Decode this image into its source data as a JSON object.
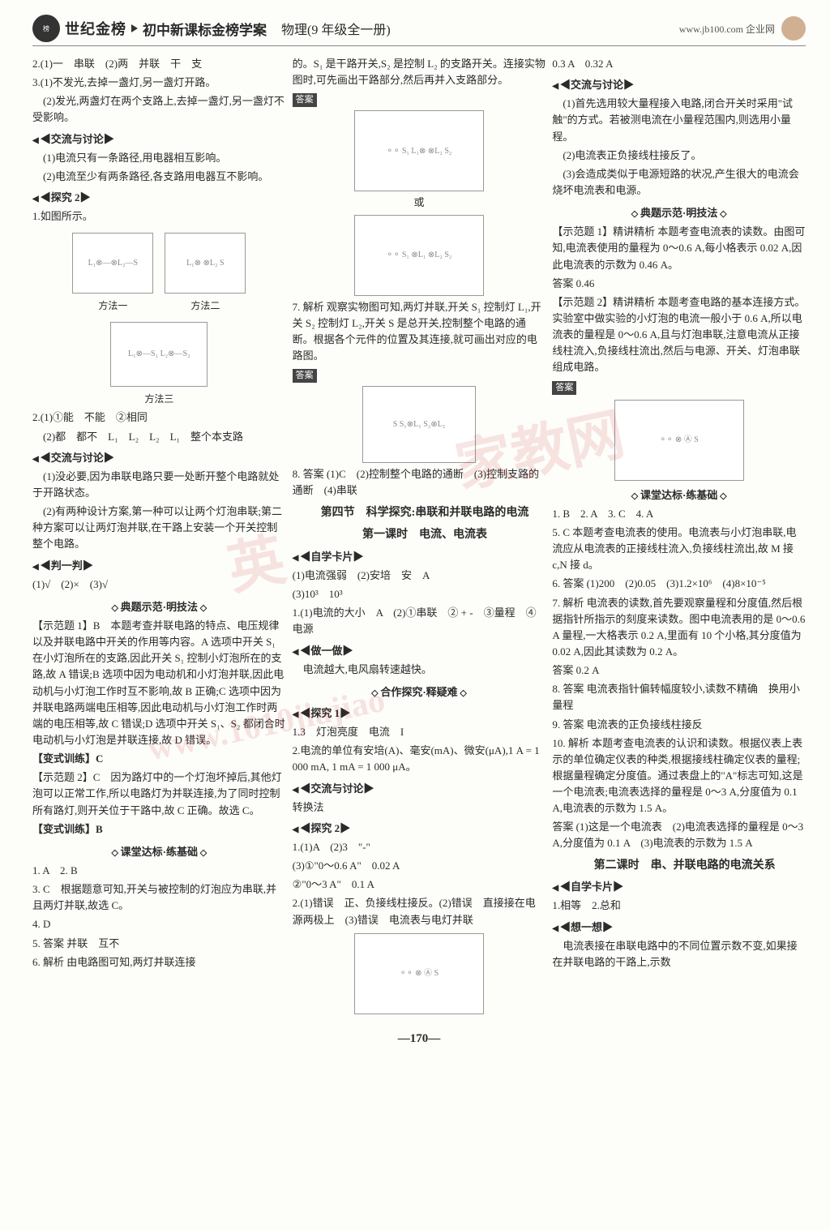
{
  "header": {
    "brand": "世纪金榜",
    "subtitle": "初中新课标金榜学案",
    "volume": "物理(9 年级全一册)",
    "url": "www.jb100.com 企业网"
  },
  "watermark": {
    "w1": "英",
    "w2": "家教网",
    "w3": "www.1010jiajiao"
  },
  "col1": {
    "l1": "2.(1)一　串联　(2)两　并联　干　支",
    "l2": "3.(1)不发光,去掉一盏灯,另一盏灯开路。",
    "l3": "(2)发光,两盏灯在两个支路上,去掉一盏灯,另一盏灯不受影响。",
    "sec1": "◀交流与讨论▶",
    "l4": "(1)电流只有一条路径,用电器相互影响。",
    "l5": "(2)电流至少有两条路径,各支路用电器互不影响。",
    "sec2": "◀探究 2▶",
    "l6": "1.如图所示。",
    "m1": "方法一",
    "m2": "方法二",
    "m3": "方法三",
    "l7": "2.(1)①能　不能　②相同",
    "l8": "(2)都　都不　L₁　L₂　L₂　L₁　整个本支路",
    "sec3": "◀交流与讨论▶",
    "l9": "(1)没必要,因为串联电路只要一处断开整个电路就处于开路状态。",
    "l10": "(2)有两种设计方案,第一种可以让两个灯泡串联;第二种方案可以让两灯泡并联,在干路上安装一个开关控制整个电路。",
    "sec4": "◀判一判▶",
    "l11": "(1)√　(2)×　(3)√",
    "bar1": "典题示范·明技法",
    "l12": "【示范题 1】B　本题考查并联电路的特点、电压规律以及并联电路中开关的作用等内容。A 选项中开关 S₁ 在小灯泡所在的支路,因此开关 S₁ 控制小灯泡所在的支路,故 A 错误;B 选项中因为电动机和小灯泡并联,因此电动机与小灯泡工作时互不影响,故 B 正确;C 选项中因为并联电路两端电压相等,因此电动机与小灯泡工作时两端的电压相等,故 C 错误;D 选项中开关 S₁、S₂ 都闭合时电动机与小灯泡是并联连接,故 D 错误。",
    "l13": "【变式训练】C",
    "l14": "【示范题 2】C　因为路灯中的一个灯泡坏掉后,其他灯泡可以正常工作,所以电路灯为并联连接,为了同时控制所有路灯,则开关位于干路中,故 C 正确。故选 C。",
    "l15": "【变式训练】B",
    "bar2": "课堂达标·练基础",
    "l16": "1. A　2. B",
    "l17": "3. C　根据题意可知,开关与被控制的灯泡应为串联,并且两灯并联,故选 C。",
    "l18": "4. D",
    "l19": "5. 答案 并联　互不",
    "l20": "6. 解析 由电路图可知,两灯并联连接"
  },
  "col2": {
    "l1": "的。S₁ 是干路开关,S₂ 是控制 L₂ 的支路开关。连接实物图时,可先画出干路部分,然后再并入支路部分。",
    "l2a": "答案",
    "huo": "或",
    "l3": "7. 解析 观察实物图可知,两灯并联,开关 S₁ 控制灯 L₁,开关 S₂ 控制灯 L₂,开关 S 是总开关,控制整个电路的通断。根据各个元件的位置及其连接,就可画出对应的电路图。",
    "l3a": "答案",
    "l4": "8. 答案 (1)C　(2)控制整个电路的通断　(3)控制支路的通断　(4)串联",
    "ttl1": "第四节　科学探究:串联和并联电路的电流",
    "ttl2": "第一课时　电流、电流表",
    "sec1": "◀自学卡片▶",
    "l5": "(1)电流强弱　(2)安培　安　A",
    "l6": "(3)10³　10³",
    "l7": "1.(1)电流的大小　A　(2)①串联　② + -　③量程　④电源",
    "sec2": "◀做一做▶",
    "l8": "电流越大,电风扇转速越快。",
    "bar1": "合作探究·释疑难",
    "sec3": "◀探究 1▶",
    "l9": "1.3　灯泡亮度　电流　I",
    "l10": "2.电流的单位有安培(A)、毫安(mA)、微安(μA),1 A = 1 000 mA, 1 mA = 1 000 μA。",
    "sec4": "◀交流与讨论▶",
    "l11": "转换法",
    "sec5": "◀探究 2▶",
    "l12": "1.(1)A　(2)3　\"-\"",
    "l13": "(3)①\"0～0.6 A\"　0.02 A",
    "l14": "②\"0～3 A\"　0.1 A",
    "l15": "2.(1)错误　正、负接线柱接反。(2)错误　直接接在电源两极上　(3)错误　电流表与电灯并联"
  },
  "col3": {
    "l1": "0.3 A　0.32 A",
    "sec1": "◀交流与讨论▶",
    "l2": "(1)首先选用较大量程接入电路,闭合开关时采用\"试触\"的方式。若被测电流在小量程范围内,则选用小量程。",
    "l3": "(2)电流表正负接线柱接反了。",
    "l4": "(3)会造成类似于电源短路的状况,产生很大的电流会烧坏电流表和电源。",
    "bar1": "典题示范·明技法",
    "l5": "【示范题 1】精讲精析 本题考查电流表的读数。由图可知,电流表使用的量程为 0～0.6 A,每小格表示 0.02 A,因此电流表的示数为 0.46 A。",
    "l6": "答案 0.46",
    "l7": "【示范题 2】精讲精析 本题考查电路的基本连接方式。实验室中做实验的小灯泡的电流一般小于 0.6 A,所以电流表的量程是 0～0.6 A,且与灯泡串联,注意电流从正接线柱流入,负接线柱流出,然后与电源、开关、灯泡串联组成电路。",
    "l7a": "答案",
    "bar2": "课堂达标·练基础",
    "l8": "1. B　2. A　3. C　4. A",
    "l9": "5. C 本题考查电流表的使用。电流表与小灯泡串联,电流应从电流表的正接线柱流入,负接线柱流出,故 M 接 c,N 接 d。",
    "l10": "6. 答案 (1)200　(2)0.05　(3)1.2×10⁶　(4)8×10⁻⁵",
    "l11": "7. 解析 电流表的读数,首先要观察量程和分度值,然后根据指针所指示的刻度来读数。图中电流表用的是 0～0.6 A 量程,一大格表示 0.2 A,里面有 10 个小格,其分度值为 0.02 A,因此其读数为 0.2 A。",
    "l12": "答案 0.2 A",
    "l13": "8. 答案 电流表指针偏转幅度较小,读数不精确　换用小量程",
    "l14": "9. 答案 电流表的正负接线柱接反",
    "l15": "10. 解析 本题考查电流表的认识和读数。根据仪表上表示的单位确定仪表的种类,根据接线柱确定仪表的量程;根据量程确定分度值。通过表盘上的\"A\"标志可知,这是一个电流表;电流表选择的量程是 0～3 A,分度值为 0.1 A,电流表的示数为 1.5 A。",
    "l16": "答案 (1)这是一个电流表　(2)电流表选择的量程是 0～3 A,分度值为 0.1 A　(3)电流表的示数为 1.5 A",
    "ttl3": "第二课时　串、并联电路的电流关系",
    "sec2": "◀自学卡片▶",
    "l17": "1.相等　2.总和",
    "sec3": "◀想一想▶",
    "l18": "电流表接在串联电路中的不同位置示数不变,如果接在并联电路的干路上,示数"
  },
  "pagenum": "—170—"
}
